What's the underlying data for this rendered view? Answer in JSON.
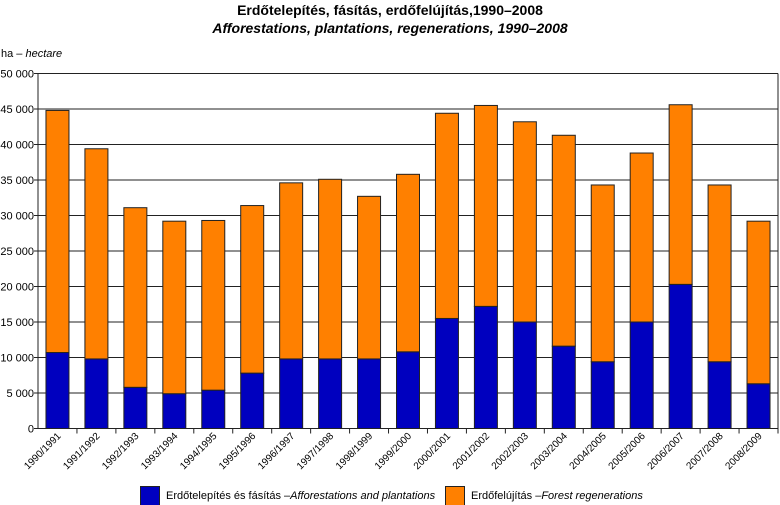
{
  "chart_data": {
    "type": "bar",
    "stacked": true,
    "title": "Erdőtelepítés, fásítás, erdőfelújítás,1990–2008",
    "subtitle": "Afforestations, plantations, regenerations, 1990–2008",
    "ylabel_main": "ha – ",
    "ylabel_italic": "hectare",
    "ylim": [
      0,
      50000
    ],
    "yticks": [
      0,
      5000,
      10000,
      15000,
      20000,
      25000,
      30000,
      35000,
      40000,
      45000,
      50000
    ],
    "ytick_labels": [
      "0",
      "5 000",
      "10 000",
      "15 000",
      "20 000",
      "25 000",
      "30 000",
      "35 000",
      "40 000",
      "45 000",
      "50 000"
    ],
    "grid": true,
    "legend_placement": "bottom",
    "categories": [
      "1990/1991",
      "1991/1992",
      "1992/1993",
      "1993/1994",
      "1994/1995",
      "1995/1996",
      "1996/1997",
      "1997/1998",
      "1998/1999",
      "1999/2000",
      "2000/2001",
      "2001/2002",
      "2002/2003",
      "2003/2004",
      "2004/2005",
      "2005/2006",
      "2006/2007",
      "2007/2008",
      "2008/2009"
    ],
    "series": [
      {
        "name_main": "Erdőtelepítés és fásítás – ",
        "name_italic": "Afforestations and plantations",
        "color": "#0000BF",
        "values": [
          10700,
          9800,
          5800,
          4900,
          5400,
          7800,
          9800,
          9800,
          9800,
          10800,
          15500,
          17200,
          15000,
          11600,
          9400,
          15000,
          20300,
          9400,
          6300
        ]
      },
      {
        "name_main": "Erdőfelújítás – ",
        "name_italic": "Forest regenerations",
        "color": "#FF8000",
        "values": [
          34100,
          29600,
          25300,
          24300,
          23900,
          23600,
          24800,
          25300,
          22900,
          25000,
          28900,
          28300,
          28200,
          29700,
          24900,
          23800,
          25300,
          24900,
          22900
        ]
      }
    ]
  }
}
